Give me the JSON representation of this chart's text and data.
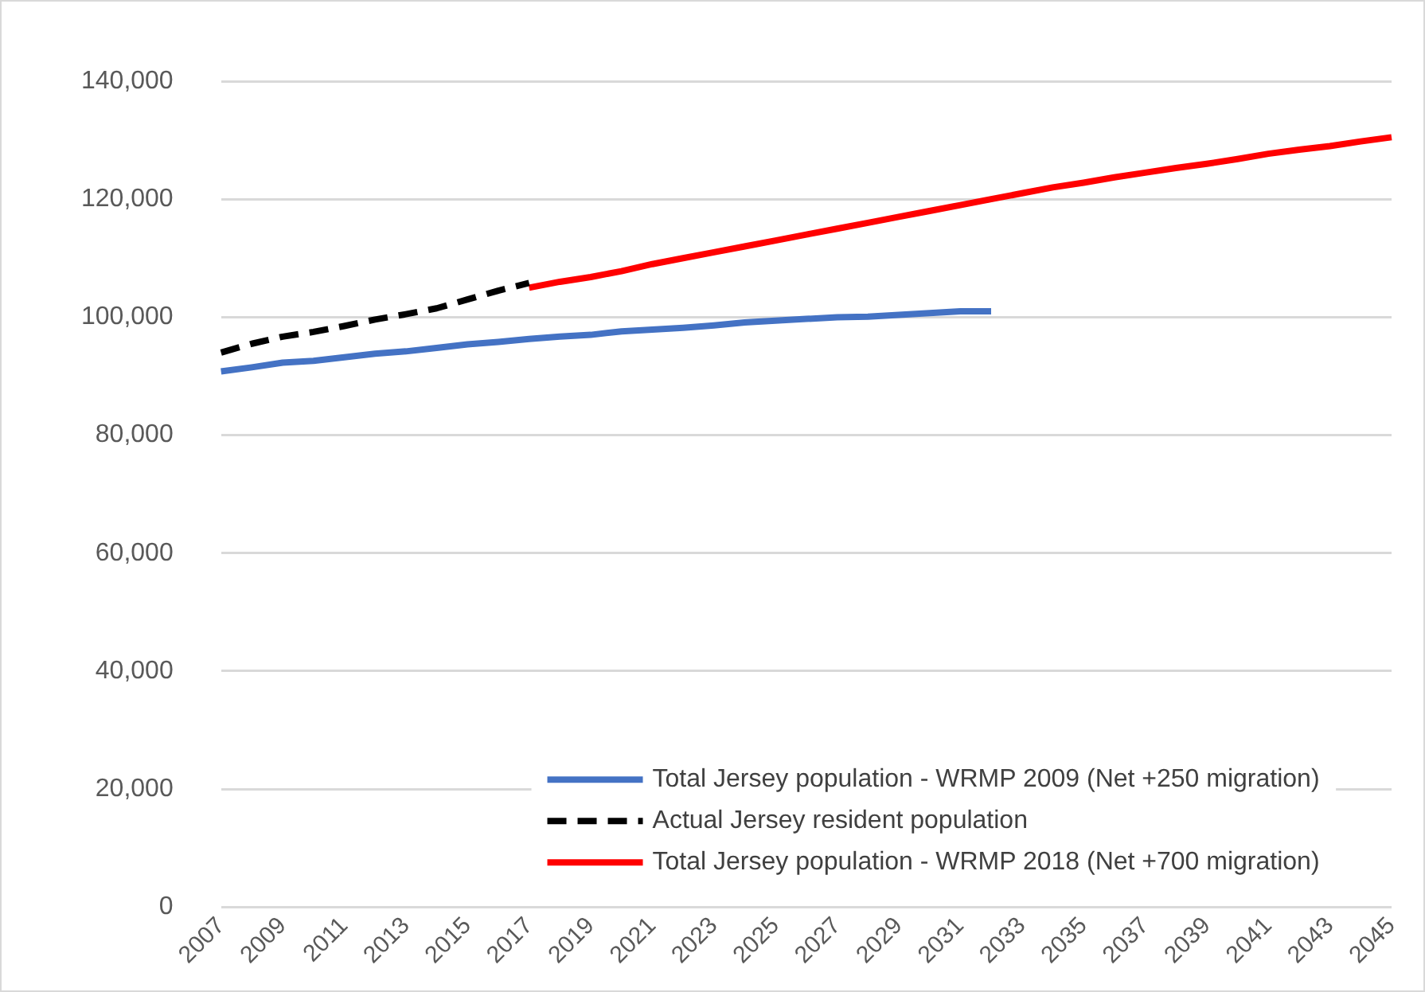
{
  "chart_data": {
    "type": "line",
    "categories": [
      "2007",
      null,
      "2009",
      null,
      "2011",
      null,
      "2013",
      null,
      "2015",
      null,
      "2017",
      null,
      "2019",
      null,
      "2021",
      null,
      "2023",
      null,
      "2025",
      null,
      "2027",
      null,
      "2029",
      null,
      "2031",
      null,
      "2033",
      null,
      "2035",
      null,
      "2037",
      null,
      "2039",
      null,
      "2041",
      null,
      "2043",
      null,
      "2045"
    ],
    "series": [
      {
        "name": "Total Jersey population - WRMP 2009 (Net +250 migration)",
        "color": "#4472c4",
        "line_style": "solid",
        "values": [
          90800,
          91500,
          92300,
          92600,
          93200,
          93800,
          94200,
          94800,
          95400,
          95800,
          96300,
          96700,
          97000,
          97600,
          97900,
          98200,
          98600,
          99100,
          99400,
          99700,
          100000,
          100100,
          100400,
          100700,
          101000,
          101000,
          null,
          null,
          null,
          null,
          null,
          null,
          null,
          null,
          null,
          null,
          null,
          null,
          null
        ]
      },
      {
        "name": "Actual Jersey resident population",
        "color": "#000000",
        "line_style": "dashed",
        "values": [
          94000,
          95500,
          96700,
          97500,
          98500,
          99600,
          100500,
          101500,
          103000,
          104500,
          105800,
          null,
          null,
          null,
          null,
          null,
          null,
          null,
          null,
          null,
          null,
          null,
          null,
          null,
          null,
          null,
          null,
          null,
          null,
          null,
          null,
          null,
          null,
          null,
          null,
          null,
          null,
          null,
          null
        ]
      },
      {
        "name": "Total Jersey population - WRMP 2018 (Net +700 migration)",
        "color": "#ff0000",
        "line_style": "solid",
        "values": [
          null,
          null,
          null,
          null,
          null,
          null,
          null,
          null,
          null,
          null,
          105000,
          106000,
          106800,
          107800,
          109000,
          110000,
          111000,
          112000,
          113000,
          114000,
          115000,
          116000,
          117000,
          118000,
          119000,
          120000,
          121000,
          122000,
          122800,
          123700,
          124500,
          125300,
          126000,
          126800,
          127700,
          128400,
          129000,
          129800,
          130500
        ]
      }
    ],
    "ylim": [
      0,
      140000
    ],
    "yticks": [
      {
        "value": 0,
        "label": "0"
      },
      {
        "value": 20000,
        "label": "20,000"
      },
      {
        "value": 40000,
        "label": "40,000"
      },
      {
        "value": 60000,
        "label": "60,000"
      },
      {
        "value": 80000,
        "label": "80,000"
      },
      {
        "value": 100000,
        "label": "100,000"
      },
      {
        "value": 120000,
        "label": "120,000"
      },
      {
        "value": 140000,
        "label": "140,000"
      }
    ],
    "grid": "y",
    "legend": "bottom",
    "marker": "none"
  }
}
